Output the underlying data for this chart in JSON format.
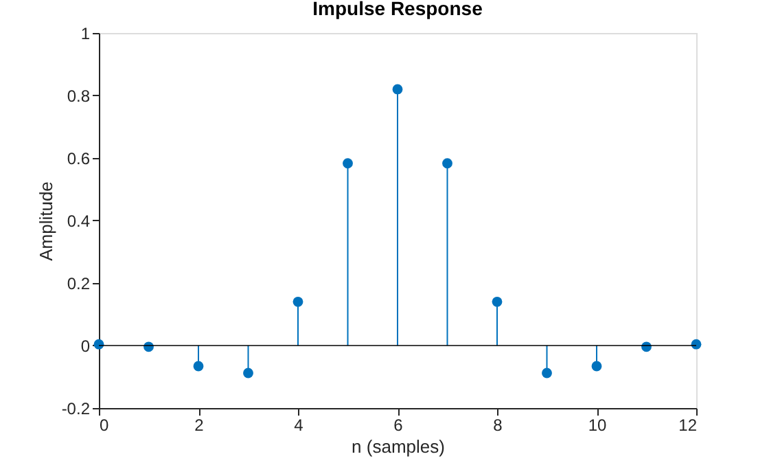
{
  "chart_data": {
    "type": "lollipop",
    "title": "Impulse Response",
    "xlabel": "n (samples)",
    "ylabel": "Amplitude",
    "x": [
      0,
      1,
      2,
      3,
      4,
      5,
      6,
      7,
      8,
      9,
      10,
      11,
      12
    ],
    "series": [
      {
        "color": "#0072bd",
        "values": [
          0.004,
          -0.004,
          -0.066,
          -0.088,
          0.14,
          0.583,
          0.82,
          0.583,
          0.14,
          -0.088,
          -0.066,
          -0.004,
          0.004
        ]
      }
    ],
    "xlim": [
      0,
      12
    ],
    "xticks": [
      0,
      2,
      4,
      6,
      8,
      10,
      12
    ],
    "ylim": [
      -0.2,
      1
    ],
    "yticks": [
      -0.2,
      0,
      0.2,
      0.4,
      0.6,
      0.8,
      1
    ],
    "ref_lines": [
      {
        "axis": "y",
        "value": 0,
        "color": "#000000"
      }
    ],
    "marker": "circle"
  }
}
